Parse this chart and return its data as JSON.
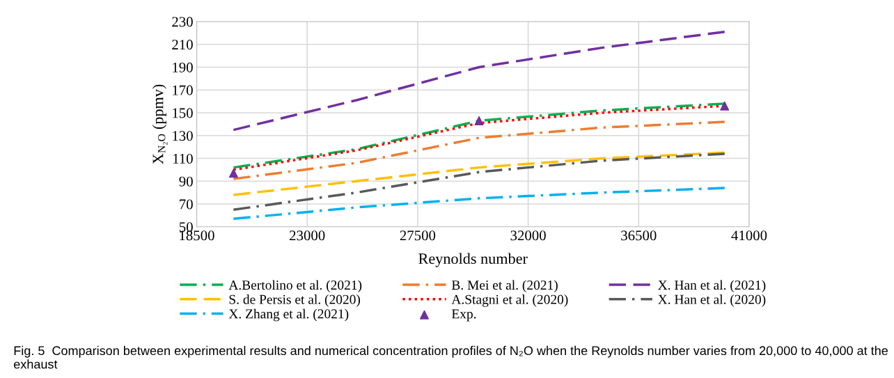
{
  "chart_data": {
    "type": "line",
    "xlabel": "Reynolds number",
    "ylabel": "X$_{N₂O}$ (ppmv)",
    "x": [
      20000,
      25000,
      30000,
      35000,
      40000
    ],
    "xlim": [
      18500,
      41000
    ],
    "xticks": [
      18500,
      23000,
      27500,
      32000,
      36500,
      41000
    ],
    "ylim": [
      50,
      230
    ],
    "yticks": [
      50,
      70,
      90,
      110,
      130,
      150,
      170,
      190,
      210,
      230
    ],
    "grid": true,
    "legend": "bottom",
    "marker": "none",
    "series": [
      {
        "name": "A.Bertolino et al. (2021)",
        "color": "#00b050",
        "line_style": "dashdot",
        "values": [
          102,
          118,
          143,
          152,
          158
        ]
      },
      {
        "name": "B. Mei et al. (2021)",
        "color": "#ed7d31",
        "line_style": "dashdot",
        "values": [
          92,
          106,
          128,
          137,
          142
        ]
      },
      {
        "name": "X. Han et al. (2021)",
        "color": "#7030a0",
        "line_style": "dashed",
        "values": [
          135,
          161,
          190,
          207,
          221
        ]
      },
      {
        "name": "S. de Persis et al. (2020)",
        "color": "#ffc000",
        "line_style": "dashed",
        "values": [
          78,
          90,
          102,
          110,
          115
        ]
      },
      {
        "name": "A.Stagni et al. (2020)",
        "color": "#ff0000",
        "line_style": "dotted",
        "values": [
          100,
          117,
          141,
          150,
          156
        ]
      },
      {
        "name": "X. Han et al. (2020)",
        "color": "#595959",
        "line_style": "dashdot",
        "values": [
          65,
          80,
          98,
          108,
          114
        ]
      },
      {
        "name": "X. Zhang et al. (2021)",
        "color": "#00b0f0",
        "line_style": "dashdot",
        "values": [
          57,
          67,
          75,
          80,
          84
        ]
      },
      {
        "name": "Exp.",
        "type": "scatter",
        "marker": "triangle",
        "color": "#7030a0",
        "x": [
          20000,
          30000,
          40000
        ],
        "values": [
          97,
          143,
          156
        ]
      }
    ],
    "annotations": [
      "Fig. 5  Comparison between experimental results and numerical concentration profiles of N₂O when the Reynolds number varies from 20,000 to 40,000 at the exhaust"
    ]
  }
}
